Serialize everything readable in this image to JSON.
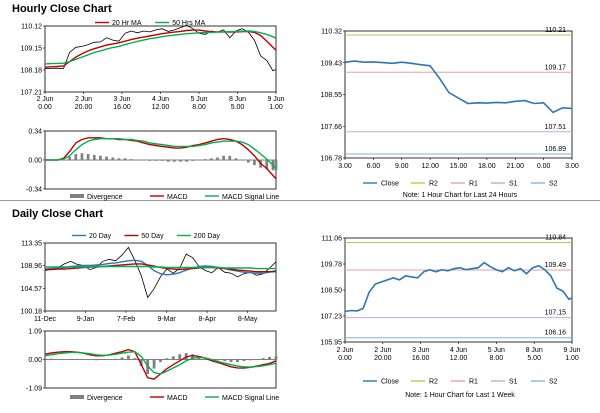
{
  "sections": [
    {
      "title": "Hourly Close Chart"
    },
    {
      "title": "Daily Close Chart"
    }
  ],
  "chart_data": [
    {
      "id": "hourly-price",
      "type": "line",
      "legend": [
        "20 Hr MA",
        "50 Hrs MA"
      ],
      "legend_position": "top",
      "ylim": [
        107.21,
        110.12
      ],
      "yticks": [
        "110.12",
        "109.15",
        "108.18",
        "107.21"
      ],
      "xticks": [
        [
          "2 Jun",
          "0.00"
        ],
        [
          "2 Jun",
          "20.00"
        ],
        [
          "3 Jun",
          "16.00"
        ],
        [
          "4 Jun",
          "12.00"
        ],
        [
          "5 Jun",
          "8.00"
        ],
        [
          "8 Jun",
          "5.00"
        ],
        [
          "9 Jun",
          "1.00"
        ]
      ],
      "x": [
        0,
        4,
        8,
        12,
        16,
        20,
        24,
        28,
        32,
        36,
        40,
        44,
        48,
        52,
        56,
        60,
        64,
        68,
        72,
        76,
        80,
        84,
        88,
        92,
        96,
        100,
        104,
        108,
        112,
        116,
        120,
        124,
        128,
        132,
        136,
        140,
        144,
        148,
        150
      ],
      "series": [
        {
          "name": "Price",
          "color": "#000000",
          "values": [
            108.25,
            108.25,
            108.26,
            108.24,
            108.95,
            109.18,
            109.22,
            109.3,
            109.4,
            109.42,
            109.6,
            109.5,
            109.45,
            109.8,
            109.9,
            109.82,
            109.9,
            109.86,
            109.95,
            110.0,
            109.88,
            109.95,
            110.05,
            110.15,
            110.0,
            109.8,
            109.75,
            109.9,
            109.85,
            109.95,
            109.6,
            109.9,
            110.0,
            109.85,
            109.5,
            108.8,
            108.6,
            108.15,
            108.2
          ]
        },
        {
          "name": "20 Hr MA",
          "color": "#c00000",
          "values": [
            108.3,
            108.32,
            108.34,
            108.36,
            108.55,
            108.75,
            108.9,
            109.02,
            109.12,
            109.2,
            109.28,
            109.33,
            109.38,
            109.45,
            109.52,
            109.58,
            109.63,
            109.68,
            109.73,
            109.78,
            109.82,
            109.85,
            109.88,
            109.92,
            109.94,
            109.94,
            109.9,
            109.87,
            109.86,
            109.86,
            109.85,
            109.86,
            109.87,
            109.88,
            109.84,
            109.7,
            109.45,
            109.18,
            109.05
          ]
        },
        {
          "name": "50 Hrs MA",
          "color": "#00b050",
          "values": [
            108.45,
            108.46,
            108.47,
            108.48,
            108.55,
            108.65,
            108.75,
            108.85,
            108.95,
            109.02,
            109.1,
            109.17,
            109.22,
            109.3,
            109.37,
            109.44,
            109.5,
            109.56,
            109.6,
            109.65,
            109.69,
            109.72,
            109.75,
            109.78,
            109.8,
            109.82,
            109.83,
            109.84,
            109.85,
            109.86,
            109.87,
            109.88,
            109.89,
            109.9,
            109.88,
            109.82,
            109.75,
            109.65,
            109.58
          ]
        }
      ]
    },
    {
      "id": "hourly-macd",
      "type": "line",
      "legend": [
        "Divergence",
        "MACD",
        "MACD Signal Line"
      ],
      "legend_position": "bottom",
      "ylim": [
        -0.34,
        0.34
      ],
      "yticks": [
        "0.34",
        "0.00",
        "-0.34"
      ],
      "x": [
        0,
        4,
        8,
        12,
        16,
        20,
        24,
        28,
        32,
        36,
        40,
        44,
        48,
        52,
        56,
        60,
        64,
        68,
        72,
        76,
        80,
        84,
        88,
        92,
        96,
        100,
        104,
        108,
        112,
        116,
        120,
        124,
        128,
        132,
        136,
        140,
        144,
        148,
        150
      ],
      "divergence": [
        0.0,
        0.0,
        0.0,
        0.0,
        0.04,
        0.07,
        0.08,
        0.07,
        0.06,
        0.05,
        0.04,
        0.03,
        0.02,
        0.02,
        0.01,
        0.0,
        0.0,
        -0.01,
        -0.01,
        -0.01,
        -0.02,
        -0.02,
        -0.02,
        -0.02,
        -0.01,
        0.0,
        0.01,
        0.02,
        0.03,
        0.05,
        0.05,
        0.02,
        0.0,
        -0.03,
        -0.06,
        -0.09,
        -0.11,
        -0.12,
        -0.12
      ],
      "series": [
        {
          "name": "MACD",
          "color": "#c00000",
          "values": [
            0.0,
            0.0,
            0.0,
            0.02,
            0.1,
            0.2,
            0.24,
            0.26,
            0.26,
            0.26,
            0.25,
            0.25,
            0.24,
            0.24,
            0.23,
            0.22,
            0.2,
            0.18,
            0.17,
            0.16,
            0.15,
            0.14,
            0.14,
            0.15,
            0.17,
            0.18,
            0.2,
            0.22,
            0.24,
            0.25,
            0.24,
            0.22,
            0.18,
            0.12,
            0.05,
            -0.04,
            -0.1,
            -0.18,
            -0.22
          ]
        },
        {
          "name": "MACD Signal Line",
          "color": "#00b050",
          "values": [
            0.0,
            0.0,
            0.0,
            0.01,
            0.05,
            0.12,
            0.18,
            0.22,
            0.24,
            0.25,
            0.25,
            0.25,
            0.25,
            0.24,
            0.24,
            0.23,
            0.22,
            0.2,
            0.19,
            0.18,
            0.17,
            0.16,
            0.16,
            0.16,
            0.16,
            0.17,
            0.18,
            0.2,
            0.21,
            0.22,
            0.22,
            0.22,
            0.21,
            0.18,
            0.13,
            0.07,
            0.01,
            -0.06,
            -0.1
          ]
        }
      ]
    },
    {
      "id": "hourly-right",
      "type": "line",
      "ylim": [
        106.78,
        110.32
      ],
      "yticks": [
        "110.32",
        "109.43",
        "108.55",
        "107.66",
        "106.78"
      ],
      "xticks": [
        "3.00",
        "6.00",
        "9.00",
        "12.00",
        "15.00",
        "18.00",
        "21.00",
        "0.00",
        "3.00"
      ],
      "x": [
        3,
        4,
        5,
        6,
        7,
        8,
        9,
        10,
        11,
        12,
        13,
        14,
        15,
        16,
        17,
        18,
        19,
        20,
        21,
        22,
        23,
        24,
        25,
        26,
        27
      ],
      "levels": [
        {
          "name": "R2",
          "value": 110.21,
          "label": "110.21",
          "color": "#b7c94a"
        },
        {
          "name": "R1",
          "value": 109.17,
          "label": "109.17",
          "color": "#e6a0a0"
        },
        {
          "name": "S1",
          "value": 107.51,
          "label": "107.51",
          "color": "#c8a8d8"
        },
        {
          "name": "S2",
          "value": 106.89,
          "label": "106.89",
          "color": "#7fb8d8"
        }
      ],
      "series": [
        {
          "name": "Close",
          "color": "#2e75b6",
          "values": [
            109.45,
            109.48,
            109.45,
            109.46,
            109.44,
            109.42,
            109.45,
            109.42,
            109.38,
            109.35,
            109.0,
            108.6,
            108.45,
            108.3,
            108.32,
            108.31,
            108.33,
            108.32,
            108.36,
            108.38,
            108.3,
            108.32,
            108.05,
            108.18,
            108.16
          ]
        }
      ],
      "legend": [
        "Close",
        "R2",
        "R1",
        "S1",
        "S2"
      ],
      "note": "Note: 1 Hour Chart for Last 24 Hours"
    },
    {
      "id": "daily-price",
      "type": "line",
      "legend": [
        "20 Day",
        "50 Day",
        "200 Day"
      ],
      "legend_position": "top",
      "ylim": [
        100.18,
        113.35
      ],
      "yticks": [
        "113.35",
        "108.96",
        "104.57",
        "100.18"
      ],
      "xticks": [
        "11-Dec",
        "9-Jan",
        "7-Feb",
        "9-Mar",
        "8-Apr",
        "8-May"
      ],
      "x": [
        0,
        5,
        10,
        15,
        20,
        25,
        30,
        35,
        40,
        45,
        50,
        55,
        60,
        65,
        70,
        75,
        80,
        85,
        90,
        95,
        100,
        105,
        110,
        115,
        120,
        125,
        130,
        135,
        140,
        145,
        150,
        155,
        160,
        165,
        170,
        175,
        180
      ],
      "series": [
        {
          "name": "Price",
          "color": "#000000",
          "values": [
            108.0,
            108.3,
            108.5,
            109.3,
            109.8,
            109.2,
            109.0,
            108.2,
            108.6,
            109.8,
            110.2,
            109.9,
            111.0,
            112.5,
            110.0,
            107.0,
            102.8,
            104.5,
            106.8,
            108.3,
            107.5,
            108.5,
            111.2,
            110.5,
            108.8,
            108.0,
            107.6,
            108.6,
            107.7,
            107.5,
            106.8,
            107.4,
            107.7,
            107.1,
            107.4,
            108.5,
            109.7
          ]
        },
        {
          "name": "20 Day",
          "color": "#2e75b6",
          "values": [
            108.3,
            108.4,
            108.5,
            108.6,
            108.8,
            108.9,
            109.0,
            109.0,
            109.1,
            109.2,
            109.4,
            109.5,
            109.7,
            109.9,
            110.0,
            109.8,
            109.0,
            108.0,
            107.4,
            107.2,
            107.3,
            107.6,
            108.1,
            108.5,
            108.8,
            108.9,
            108.8,
            108.6,
            108.4,
            108.1,
            107.9,
            107.7,
            107.6,
            107.5,
            107.5,
            107.7,
            108.0
          ]
        },
        {
          "name": "50 Day",
          "color": "#c00000",
          "values": [
            108.2,
            108.2,
            108.3,
            108.3,
            108.4,
            108.5,
            108.6,
            108.7,
            108.8,
            108.8,
            108.9,
            109.0,
            109.1,
            109.2,
            109.3,
            109.3,
            109.1,
            108.9,
            108.6,
            108.4,
            108.3,
            108.2,
            108.3,
            108.4,
            108.5,
            108.6,
            108.6,
            108.5,
            108.4,
            108.3,
            108.1,
            108.0,
            107.9,
            107.8,
            107.8,
            107.8,
            107.8
          ]
        },
        {
          "name": "200 Day",
          "color": "#00b050",
          "values": [
            108.7,
            108.7,
            108.7,
            108.7,
            108.7,
            108.7,
            108.7,
            108.7,
            108.7,
            108.8,
            108.8,
            108.8,
            108.8,
            108.8,
            108.8,
            108.8,
            108.8,
            108.7,
            108.7,
            108.6,
            108.6,
            108.6,
            108.6,
            108.6,
            108.6,
            108.6,
            108.6,
            108.6,
            108.5,
            108.5,
            108.5,
            108.5,
            108.5,
            108.4,
            108.4,
            108.4,
            108.4
          ]
        }
      ]
    },
    {
      "id": "daily-macd",
      "type": "line",
      "legend": [
        "Divergence",
        "MACD",
        "MACD Signal Line"
      ],
      "legend_position": "bottom",
      "ylim": [
        -1.09,
        1.09
      ],
      "yticks": [
        "1.09",
        "0.00",
        "-1.09"
      ],
      "x": [
        0,
        5,
        10,
        15,
        20,
        25,
        30,
        35,
        40,
        45,
        50,
        55,
        60,
        65,
        70,
        75,
        80,
        85,
        90,
        95,
        100,
        105,
        110,
        115,
        120,
        125,
        130,
        135,
        140,
        145,
        150,
        155,
        160,
        165,
        170,
        175,
        180
      ],
      "divergence": [
        0.03,
        0.03,
        0.02,
        0.02,
        0.02,
        0.01,
        0.0,
        -0.02,
        -0.03,
        -0.02,
        0.0,
        0.03,
        0.08,
        0.15,
        0.05,
        -0.25,
        -0.55,
        -0.35,
        -0.1,
        0.05,
        0.12,
        0.2,
        0.25,
        0.2,
        0.12,
        0.05,
        0.0,
        -0.03,
        -0.06,
        -0.1,
        -0.1,
        -0.06,
        -0.03,
        0.02,
        0.05,
        0.1,
        0.12
      ],
      "series": [
        {
          "name": "MACD",
          "color": "#c00000",
          "values": [
            0.2,
            0.25,
            0.28,
            0.3,
            0.3,
            0.28,
            0.24,
            0.18,
            0.14,
            0.14,
            0.18,
            0.24,
            0.3,
            0.38,
            0.3,
            -0.2,
            -0.7,
            -0.75,
            -0.55,
            -0.35,
            -0.2,
            -0.05,
            0.1,
            0.15,
            0.12,
            0.05,
            -0.05,
            -0.12,
            -0.2,
            -0.28,
            -0.32,
            -0.33,
            -0.3,
            -0.25,
            -0.2,
            -0.15,
            -0.05
          ]
        },
        {
          "name": "MACD Signal Line",
          "color": "#00b050",
          "values": [
            0.15,
            0.18,
            0.22,
            0.25,
            0.27,
            0.27,
            0.25,
            0.22,
            0.18,
            0.16,
            0.17,
            0.2,
            0.24,
            0.28,
            0.3,
            0.12,
            -0.25,
            -0.5,
            -0.55,
            -0.45,
            -0.32,
            -0.2,
            -0.05,
            0.05,
            0.08,
            0.06,
            0.0,
            -0.08,
            -0.14,
            -0.2,
            -0.25,
            -0.28,
            -0.29,
            -0.27,
            -0.24,
            -0.2,
            -0.14
          ]
        }
      ]
    },
    {
      "id": "daily-right",
      "type": "line",
      "ylim": [
        105.95,
        111.06
      ],
      "yticks": [
        "111.06",
        "109.78",
        "108.50",
        "107.23",
        "105.95"
      ],
      "xticks": [
        [
          "2 Jun",
          "0.00"
        ],
        [
          "2 Jun",
          "20.00"
        ],
        [
          "3 Jun",
          "16.00"
        ],
        [
          "4 Jun",
          "12.00"
        ],
        [
          "5 Jun",
          "8.00"
        ],
        [
          "8 Jun",
          "5.00"
        ],
        [
          "9 Jun",
          "1.00"
        ]
      ],
      "x": [
        0,
        4,
        8,
        12,
        16,
        20,
        24,
        28,
        32,
        36,
        40,
        44,
        48,
        52,
        56,
        60,
        64,
        68,
        72,
        76,
        80,
        84,
        88,
        92,
        96,
        100,
        104,
        108,
        112,
        116,
        120,
        124,
        128,
        132,
        136,
        140,
        144,
        148,
        150
      ],
      "levels": [
        {
          "name": "R2",
          "value": 110.84,
          "label": "110.84",
          "color": "#b7c94a"
        },
        {
          "name": "R1",
          "value": 109.49,
          "label": "109.49",
          "color": "#e6a0a0"
        },
        {
          "name": "S1",
          "value": 107.15,
          "label": "107.15",
          "color": "#c8a8d8"
        },
        {
          "name": "S2",
          "value": 106.16,
          "label": "106.16",
          "color": "#7fb8d8"
        }
      ],
      "series": [
        {
          "name": "Close",
          "color": "#2e75b6",
          "values": [
            107.45,
            107.5,
            107.48,
            107.6,
            108.4,
            108.8,
            108.9,
            109.0,
            109.1,
            109.0,
            109.2,
            109.15,
            109.1,
            109.4,
            109.5,
            109.4,
            109.5,
            109.45,
            109.55,
            109.6,
            109.5,
            109.55,
            109.6,
            109.85,
            109.65,
            109.5,
            109.4,
            109.6,
            109.45,
            109.55,
            109.3,
            109.6,
            109.7,
            109.5,
            109.2,
            108.6,
            108.45,
            108.05,
            108.12
          ]
        }
      ],
      "legend": [
        "Close",
        "R2",
        "R1",
        "S1",
        "S2"
      ],
      "note": "Note: 1 Hour Chart for Last 1 Week"
    }
  ]
}
